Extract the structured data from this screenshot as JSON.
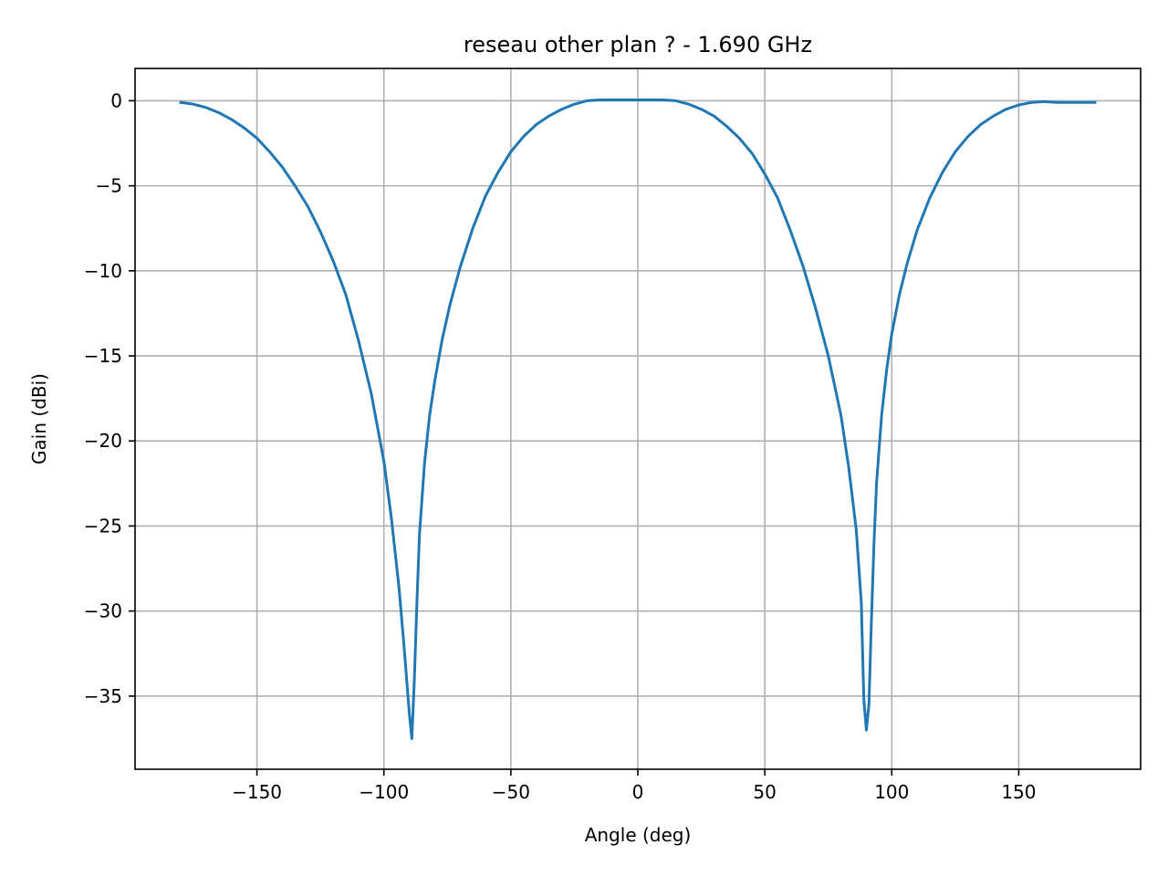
{
  "chart_data": {
    "type": "line",
    "title": "reseau other plan ? - 1.690 GHz",
    "xlabel": "Angle (deg)",
    "ylabel": "Gain (dBi)",
    "xlim": [
      -198,
      198
    ],
    "ylim": [
      -39.3,
      1.9
    ],
    "xticks": [
      -150,
      -100,
      -50,
      0,
      50,
      100,
      150
    ],
    "xtick_labels": [
      "−150",
      "−100",
      "−50",
      "0",
      "50",
      "100",
      "150"
    ],
    "yticks": [
      0,
      -5,
      -10,
      -15,
      -20,
      -25,
      -30,
      -35
    ],
    "ytick_labels": [
      "0",
      "−5",
      "−10",
      "−15",
      "−20",
      "−25",
      "−30",
      "−35"
    ],
    "grid": true,
    "line_color": "#1f77b4",
    "series": [
      {
        "x": [
          -180,
          -175,
          -170,
          -165,
          -160,
          -155,
          -150,
          -145,
          -140,
          -135,
          -130,
          -125,
          -120,
          -115,
          -110,
          -105,
          -100,
          -97,
          -94,
          -92,
          -90,
          -89,
          -88,
          -87,
          -86,
          -84,
          -82,
          -80,
          -77,
          -74,
          -70,
          -65,
          -60,
          -55,
          -50,
          -45,
          -40,
          -35,
          -30,
          -25,
          -20,
          -15,
          -10,
          -5,
          0,
          5,
          10,
          15,
          20,
          25,
          30,
          35,
          40,
          45,
          50,
          55,
          60,
          65,
          70,
          75,
          80,
          83,
          86,
          88,
          89,
          90,
          91,
          92,
          93,
          94,
          96,
          98,
          100,
          103,
          106,
          110,
          115,
          120,
          125,
          130,
          135,
          140,
          145,
          150,
          155,
          160,
          165,
          170,
          175,
          180
        ],
        "y": [
          -0.1,
          -0.2,
          -0.4,
          -0.7,
          -1.1,
          -1.6,
          -2.2,
          -3.0,
          -3.9,
          -5.0,
          -6.2,
          -7.7,
          -9.4,
          -11.4,
          -14.1,
          -17.2,
          -21.2,
          -24.6,
          -28.7,
          -32.2,
          -36.0,
          -37.5,
          -34.0,
          -29.5,
          -25.5,
          -21.3,
          -18.5,
          -16.5,
          -14.0,
          -12.0,
          -9.8,
          -7.5,
          -5.6,
          -4.2,
          -3.0,
          -2.1,
          -1.4,
          -0.9,
          -0.5,
          -0.2,
          0.0,
          0.05,
          0.05,
          0.05,
          0.05,
          0.05,
          0.05,
          0.0,
          -0.2,
          -0.5,
          -0.9,
          -1.5,
          -2.2,
          -3.1,
          -4.3,
          -5.7,
          -7.6,
          -9.7,
          -12.2,
          -15.0,
          -18.5,
          -21.5,
          -25.2,
          -29.5,
          -35.2,
          -37.0,
          -35.5,
          -30.5,
          -26.0,
          -22.5,
          -18.5,
          -15.8,
          -13.7,
          -11.4,
          -9.6,
          -7.6,
          -5.7,
          -4.2,
          -3.0,
          -2.1,
          -1.4,
          -0.9,
          -0.5,
          -0.25,
          -0.1,
          -0.05,
          -0.1,
          -0.1,
          -0.1,
          -0.1
        ]
      }
    ]
  }
}
